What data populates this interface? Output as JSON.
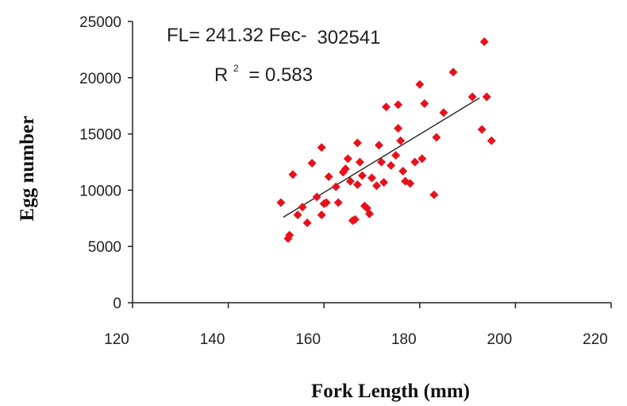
{
  "chart_data": {
    "type": "scatter",
    "title": "",
    "xlabel": "Fork Length (mm)",
    "ylabel": "Egg number",
    "xlim": [
      120,
      220
    ],
    "ylim": [
      0,
      25000
    ],
    "x_ticks": [
      "120",
      "140",
      "160",
      "180",
      "200",
      "220"
    ],
    "y_ticks": [
      "0",
      "5000",
      "10000",
      "15000",
      "20000",
      "25000"
    ],
    "grid": false,
    "legend": "none",
    "marker_color": "#e8111b",
    "trendline_color": "#222222",
    "annotations": {
      "equation_prefix": "FL= 241.32 Fec-",
      "equation_suffix": "302541",
      "r_label": "R",
      "r_power": "2",
      "r_value": "= 0.583"
    },
    "trendline": {
      "x": [
        151.5,
        192.5
      ],
      "y": [
        7600,
        18200
      ]
    },
    "series": [
      {
        "x": [
          151,
          152.5,
          152.8,
          153.5,
          154.5,
          155.5,
          156.5,
          157.5,
          158.5,
          159.5,
          159.5,
          160,
          160.5,
          161,
          162.5,
          163,
          164,
          164.5,
          165,
          165.5,
          166,
          166.5,
          167,
          167,
          167.5,
          168,
          168.5,
          169,
          169.5,
          170,
          171,
          171.5,
          172,
          172.5,
          173,
          174,
          175,
          175.5,
          175.5,
          176,
          176.5,
          177,
          178,
          179,
          180,
          180.5,
          181,
          183,
          183.5,
          185,
          187,
          191,
          193,
          193.5,
          194,
          195
        ],
        "y": [
          8900,
          5700,
          6000,
          11400,
          7800,
          8500,
          7100,
          12400,
          9400,
          13800,
          7800,
          8800,
          8900,
          11200,
          10300,
          8900,
          11600,
          11900,
          12800,
          10800,
          7300,
          7400,
          14200,
          10500,
          12500,
          11300,
          8600,
          8400,
          7900,
          11100,
          10400,
          14000,
          12500,
          10700,
          17400,
          12200,
          13100,
          15500,
          17600,
          14400,
          11700,
          10800,
          10600,
          12500,
          19400,
          12800,
          17700,
          9600,
          14700,
          16900,
          20500,
          18300,
          15400,
          23200,
          18300,
          14400
        ]
      }
    ]
  }
}
